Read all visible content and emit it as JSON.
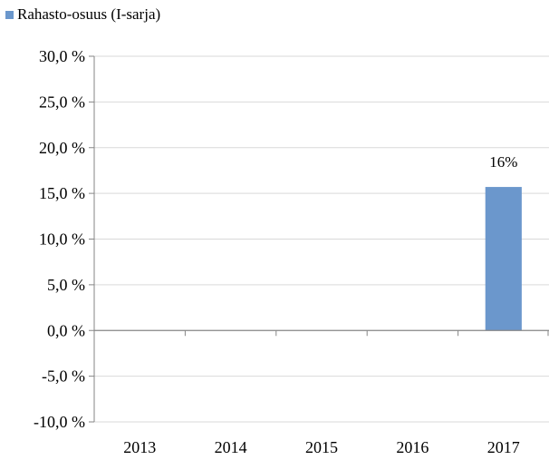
{
  "chart_data": {
    "type": "bar",
    "title": "",
    "xlabel": "",
    "ylabel": "",
    "categories": [
      "2013",
      "2014",
      "2015",
      "2016",
      "2017"
    ],
    "series": [
      {
        "name": "Rahasto-osuus (I-sarja)",
        "values": [
          null,
          null,
          null,
          null,
          15.7
        ],
        "data_labels": [
          "",
          "",
          "",
          "",
          "16%"
        ],
        "color": "#6b97cc"
      }
    ],
    "ylim": [
      -10,
      30
    ],
    "yticks": [
      30,
      25,
      20,
      15,
      10,
      5,
      0,
      -5,
      -10
    ],
    "ytick_labels": [
      "30,0 %",
      "25,0 %",
      "20,0 %",
      "15,0 %",
      "10,0 %",
      "5,0 %",
      "0,0 %",
      "-5,0 %",
      "-10,0 %"
    ],
    "grid": true,
    "grid_color": "#d9d9d9",
    "axis_color": "#868686",
    "legend_position": "top-left"
  }
}
